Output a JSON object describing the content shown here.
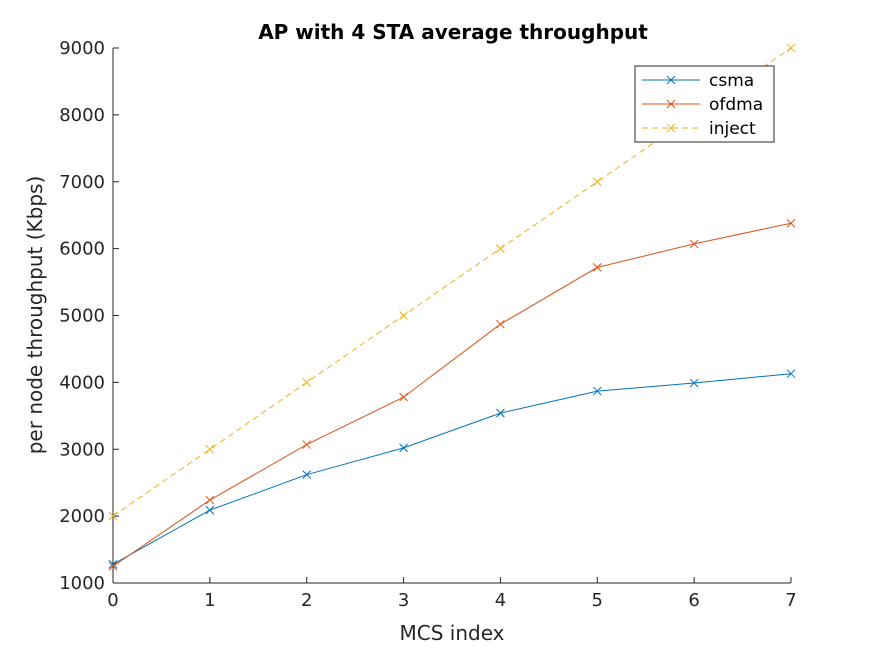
{
  "chart_data": {
    "type": "line",
    "title": "AP with 4 STA average throughput",
    "xlabel": "MCS index",
    "ylabel": "per node throughput (Kbps)",
    "xlim": [
      0,
      7
    ],
    "ylim": [
      1000,
      9000
    ],
    "x": [
      0,
      1,
      2,
      3,
      4,
      5,
      6,
      7
    ],
    "xticks": [
      0,
      1,
      2,
      3,
      4,
      5,
      6,
      7
    ],
    "yticks": [
      1000,
      2000,
      3000,
      4000,
      5000,
      6000,
      7000,
      8000,
      9000
    ],
    "grid": false,
    "legend_position": "top-right",
    "series": [
      {
        "name": "csma",
        "color": "#0072BD",
        "line_style": "solid",
        "marker": "x",
        "values": [
          1280,
          2090,
          2620,
          3020,
          3540,
          3870,
          3990,
          4130
        ]
      },
      {
        "name": "ofdma",
        "color": "#D95319",
        "line_style": "solid",
        "marker": "x",
        "values": [
          1250,
          2240,
          3070,
          3780,
          4870,
          5720,
          6070,
          6380
        ]
      },
      {
        "name": "inject",
        "color": "#EDB120",
        "line_style": "dashed",
        "marker": "x",
        "values": [
          2000,
          3000,
          4000,
          5000,
          6000,
          7000,
          8000,
          9000
        ]
      }
    ]
  }
}
